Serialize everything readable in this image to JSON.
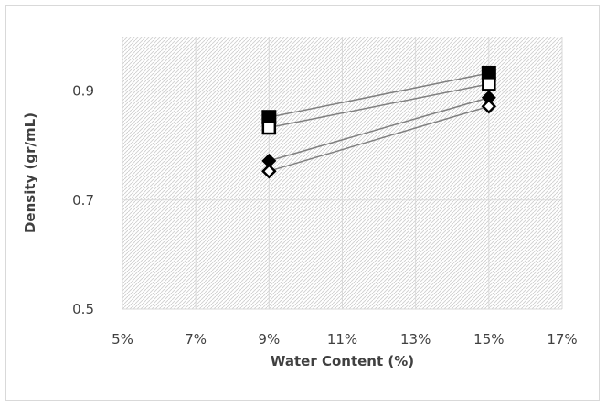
{
  "chart_data": {
    "type": "scatter",
    "title": "",
    "xlabel": "Water Content (%)",
    "ylabel": "Density (gr/mL)",
    "xlim": [
      5,
      17
    ],
    "ylim": [
      0.5,
      1.0
    ],
    "x_ticks": [
      5,
      7,
      9,
      11,
      13,
      15,
      17
    ],
    "x_tick_labels": [
      "5%",
      "7%",
      "9%",
      "11%",
      "13%",
      "15%",
      "17%"
    ],
    "y_ticks": [
      0.5,
      0.7,
      0.9
    ],
    "y_tick_labels": [
      "0.5",
      "0.7",
      "0.9"
    ],
    "grid": true,
    "legend": "none",
    "series": [
      {
        "marker": "filled-square",
        "x": [
          9,
          15
        ],
        "y": [
          0.852,
          0.933
        ]
      },
      {
        "marker": "open-square",
        "x": [
          9,
          15
        ],
        "y": [
          0.833,
          0.913
        ]
      },
      {
        "marker": "filled-diamond",
        "x": [
          9,
          15
        ],
        "y": [
          0.772,
          0.888
        ]
      },
      {
        "marker": "open-diamond",
        "x": [
          9,
          15
        ],
        "y": [
          0.753,
          0.872
        ]
      }
    ],
    "colors": {
      "marker": "#000000",
      "line": "#7f7f7f",
      "grid": "#d9d9d9",
      "plot_pattern": "#d0d0d0"
    }
  }
}
